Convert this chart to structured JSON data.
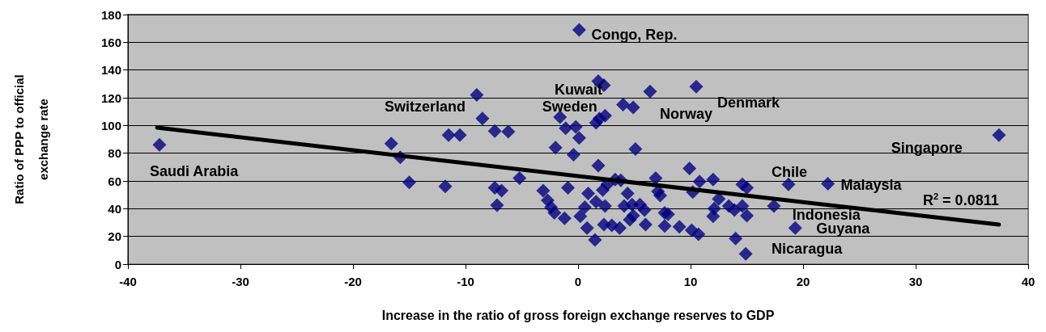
{
  "chart_data": {
    "type": "scatter",
    "xlabel": "Increase in the ratio of gross foreign exchange reserves to GDP",
    "ylabel": "Ratio of PPP to official exchange rate",
    "xlim": [
      -40,
      40
    ],
    "xticks": [
      -40,
      -30,
      -20,
      -10,
      0,
      10,
      20,
      30,
      40
    ],
    "ylim": [
      0,
      180
    ],
    "yticks": [
      0,
      20,
      40,
      60,
      80,
      100,
      120,
      140,
      160,
      180
    ],
    "grid": "y",
    "marker": "diamond",
    "series": [
      {
        "color": "#000080",
        "x": [
          -37.2,
          -16.6,
          -15.8,
          -15.0,
          -11.8,
          -11.5,
          -10.5,
          -9.0,
          -8.5,
          -7.4,
          -6.2,
          -5.2,
          -7.4,
          -6.8,
          -7.2,
          -3.1,
          -2.7,
          -2.4,
          -2.1,
          -1.2,
          -0.9,
          -2.0,
          -1.6,
          -1.1,
          -0.2,
          0.1,
          -0.4,
          0.1,
          1.8,
          2.3,
          1.6,
          1.9,
          2.4,
          4.0,
          4.9,
          6.4,
          5.1,
          1.8,
          0.9,
          0.6,
          0.2,
          0.8,
          1.5,
          2.2,
          2.6,
          3.3,
          3.8,
          1.6,
          2.4,
          2.3,
          3.0,
          3.7,
          4.4,
          4.1,
          4.8,
          5.5,
          5.9,
          4.6,
          4.9,
          6.0,
          6.9,
          7.1,
          7.7,
          7.7,
          10.5,
          9.9,
          7.3,
          10.8,
          12.0,
          10.2,
          14.6,
          15.0,
          12.5,
          12.1,
          12.0,
          13.4,
          13.9,
          14.6,
          15.0,
          8.0,
          9.0,
          10.1,
          10.7,
          14.0,
          14.9,
          18.7,
          22.2,
          17.4,
          19.3,
          37.4
        ],
        "values": [
          86,
          87,
          77,
          59,
          56,
          93,
          93,
          122,
          105,
          96,
          95.5,
          62,
          55,
          53,
          42.5,
          53,
          46,
          41,
          37,
          33,
          55,
          84,
          106,
          98,
          99,
          91,
          79,
          169,
          132,
          129,
          102,
          105,
          107,
          115,
          113,
          124.5,
          83,
          71,
          51,
          41,
          34.5,
          26,
          17.5,
          53.5,
          57.5,
          61,
          60.5,
          45,
          42,
          28.5,
          28,
          26,
          51,
          42,
          43,
          43,
          39,
          32,
          35,
          28.5,
          62,
          52.5,
          37,
          27.5,
          128,
          69,
          49.5,
          59.5,
          61,
          52,
          57.5,
          55,
          47,
          40,
          34.5,
          42,
          39,
          42,
          35,
          36,
          27,
          24.5,
          21.5,
          18.5,
          7.5,
          57.5,
          58,
          42,
          26,
          93
        ]
      },
      {
        "type": "line",
        "color": "#000000",
        "marker": "none",
        "line_style": "solid",
        "x": [
          -37.4,
          37.4
        ],
        "values": [
          98.4,
          28.5
        ]
      }
    ],
    "annotations": [
      {
        "text": "Congo, Rep.",
        "x": 0.1,
        "y": 169
      },
      {
        "text": "Kuwait",
        "x": 1.8,
        "y": 132
      },
      {
        "text": "Sweden",
        "x": -1.6,
        "y": 106
      },
      {
        "text": "Switzerland",
        "x": -9.0,
        "y": 122
      },
      {
        "text": "Norway",
        "x": 6.4,
        "y": 124.5
      },
      {
        "text": "Denmark",
        "x": 10.5,
        "y": 128
      },
      {
        "text": "Singapore",
        "x": 37.4,
        "y": 93
      },
      {
        "text": "Saudi Arabia",
        "x": -37.2,
        "y": 86
      },
      {
        "text": "Chile",
        "x": 18.7,
        "y": 57.5
      },
      {
        "text": "Malaysia",
        "x": 22.2,
        "y": 58
      },
      {
        "text": "Indonesia",
        "x": 17.4,
        "y": 42
      },
      {
        "text": "Guyana",
        "x": 19.3,
        "y": 26
      },
      {
        "text": "Nicaragua",
        "x": 14.9,
        "y": 7.5
      },
      "R$^{2}$ = 0.0811"
    ]
  }
}
